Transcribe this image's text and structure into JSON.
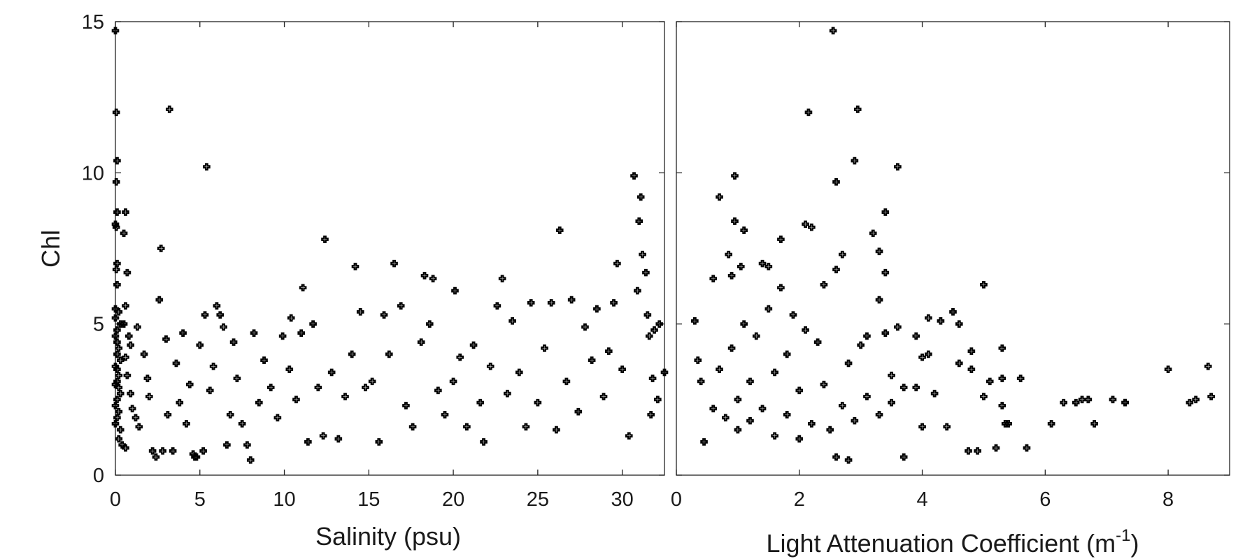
{
  "chart_data": [
    {
      "type": "scatter",
      "ylabel": "Chl",
      "xlabel": "Salinity (psu)",
      "xlim": [
        0,
        32.5
      ],
      "ylim": [
        0,
        15
      ],
      "xticks": [
        "0",
        "5",
        "10",
        "15",
        "20",
        "25",
        "30"
      ],
      "yticks": [
        "0",
        "5",
        "10",
        "15"
      ],
      "grid": false,
      "marker": "cross-outline",
      "points": [
        [
          0.0,
          14.7
        ],
        [
          0.05,
          12.0
        ],
        [
          0.1,
          10.4
        ],
        [
          0.05,
          9.7
        ],
        [
          0.1,
          8.7
        ],
        [
          0.0,
          8.3
        ],
        [
          0.05,
          8.2
        ],
        [
          0.1,
          7.0
        ],
        [
          0.05,
          6.8
        ],
        [
          0.1,
          6.3
        ],
        [
          0.0,
          5.5
        ],
        [
          0.0,
          5.2
        ],
        [
          0.2,
          5.4
        ],
        [
          0.3,
          5.0
        ],
        [
          0.1,
          4.8
        ],
        [
          0.0,
          4.6
        ],
        [
          0.1,
          4.4
        ],
        [
          0.2,
          4.2
        ],
        [
          0.1,
          4.0
        ],
        [
          0.3,
          3.8
        ],
        [
          0.0,
          3.6
        ],
        [
          0.1,
          3.5
        ],
        [
          0.2,
          3.3
        ],
        [
          0.1,
          3.1
        ],
        [
          0.0,
          3.0
        ],
        [
          0.2,
          2.9
        ],
        [
          0.3,
          2.7
        ],
        [
          0.1,
          2.5
        ],
        [
          0.0,
          2.3
        ],
        [
          0.2,
          2.1
        ],
        [
          0.1,
          1.9
        ],
        [
          0.0,
          1.7
        ],
        [
          0.3,
          1.5
        ],
        [
          0.2,
          1.2
        ],
        [
          0.4,
          1.0
        ],
        [
          0.6,
          0.9
        ],
        [
          0.6,
          8.7
        ],
        [
          0.5,
          8.0
        ],
        [
          0.7,
          6.7
        ],
        [
          0.6,
          5.6
        ],
        [
          0.5,
          5.0
        ],
        [
          0.8,
          4.6
        ],
        [
          0.9,
          4.3
        ],
        [
          0.6,
          3.9
        ],
        [
          0.7,
          3.3
        ],
        [
          0.9,
          2.7
        ],
        [
          1.0,
          2.2
        ],
        [
          1.2,
          1.9
        ],
        [
          1.4,
          1.6
        ],
        [
          1.3,
          4.9
        ],
        [
          1.7,
          4.0
        ],
        [
          1.9,
          3.2
        ],
        [
          2.0,
          2.6
        ],
        [
          2.2,
          0.8
        ],
        [
          2.4,
          0.6
        ],
        [
          2.6,
          5.8
        ],
        [
          2.7,
          7.5
        ],
        [
          2.8,
          0.8
        ],
        [
          3.0,
          4.5
        ],
        [
          3.1,
          2.0
        ],
        [
          3.2,
          12.1
        ],
        [
          3.4,
          0.8
        ],
        [
          3.6,
          3.7
        ],
        [
          3.8,
          2.4
        ],
        [
          4.0,
          4.7
        ],
        [
          4.2,
          1.7
        ],
        [
          4.4,
          3.0
        ],
        [
          4.6,
          0.7
        ],
        [
          4.7,
          0.6
        ],
        [
          4.8,
          0.6
        ],
        [
          5.0,
          4.3
        ],
        [
          5.2,
          0.8
        ],
        [
          5.3,
          5.3
        ],
        [
          5.4,
          10.2
        ],
        [
          5.6,
          2.8
        ],
        [
          5.8,
          3.6
        ],
        [
          6.0,
          5.6
        ],
        [
          6.2,
          5.3
        ],
        [
          6.4,
          4.9
        ],
        [
          6.6,
          1.0
        ],
        [
          6.8,
          2.0
        ],
        [
          7.0,
          4.4
        ],
        [
          7.2,
          3.2
        ],
        [
          7.5,
          1.7
        ],
        [
          7.8,
          1.0
        ],
        [
          8.0,
          0.5
        ],
        [
          8.2,
          4.7
        ],
        [
          8.5,
          2.4
        ],
        [
          8.8,
          3.8
        ],
        [
          9.2,
          2.9
        ],
        [
          9.6,
          1.9
        ],
        [
          9.9,
          4.6
        ],
        [
          10.3,
          3.5
        ],
        [
          10.4,
          5.2
        ],
        [
          10.7,
          2.5
        ],
        [
          11.0,
          4.7
        ],
        [
          11.1,
          6.2
        ],
        [
          11.4,
          1.1
        ],
        [
          11.7,
          5.0
        ],
        [
          12.0,
          2.9
        ],
        [
          12.3,
          1.3
        ],
        [
          12.4,
          7.8
        ],
        [
          12.8,
          3.4
        ],
        [
          13.2,
          1.2
        ],
        [
          13.6,
          2.6
        ],
        [
          14.0,
          4.0
        ],
        [
          14.2,
          6.9
        ],
        [
          14.5,
          5.4
        ],
        [
          14.8,
          2.9
        ],
        [
          15.2,
          3.1
        ],
        [
          15.6,
          1.1
        ],
        [
          15.9,
          5.3
        ],
        [
          16.2,
          4.0
        ],
        [
          16.5,
          7.0
        ],
        [
          16.9,
          5.6
        ],
        [
          17.2,
          2.3
        ],
        [
          17.6,
          1.6
        ],
        [
          18.1,
          4.4
        ],
        [
          18.3,
          6.6
        ],
        [
          18.6,
          5.0
        ],
        [
          18.8,
          6.5
        ],
        [
          19.1,
          2.8
        ],
        [
          19.5,
          2.0
        ],
        [
          20.0,
          3.1
        ],
        [
          20.1,
          6.1
        ],
        [
          20.4,
          3.9
        ],
        [
          20.8,
          1.6
        ],
        [
          21.2,
          4.3
        ],
        [
          21.6,
          2.4
        ],
        [
          21.8,
          1.1
        ],
        [
          22.2,
          3.6
        ],
        [
          22.6,
          5.6
        ],
        [
          22.9,
          6.5
        ],
        [
          23.2,
          2.7
        ],
        [
          23.5,
          5.1
        ],
        [
          23.9,
          3.4
        ],
        [
          24.3,
          1.6
        ],
        [
          24.6,
          5.7
        ],
        [
          25.0,
          2.4
        ],
        [
          25.4,
          4.2
        ],
        [
          25.8,
          5.7
        ],
        [
          26.1,
          1.5
        ],
        [
          26.3,
          8.1
        ],
        [
          26.7,
          3.1
        ],
        [
          27.0,
          5.8
        ],
        [
          27.4,
          2.1
        ],
        [
          27.8,
          4.9
        ],
        [
          28.2,
          3.8
        ],
        [
          28.5,
          5.5
        ],
        [
          28.9,
          2.6
        ],
        [
          29.2,
          4.1
        ],
        [
          29.5,
          5.7
        ],
        [
          29.7,
          7.0
        ],
        [
          30.0,
          3.5
        ],
        [
          30.4,
          1.3
        ],
        [
          30.7,
          9.9
        ],
        [
          30.9,
          6.1
        ],
        [
          31.0,
          8.4
        ],
        [
          31.1,
          9.2
        ],
        [
          31.2,
          7.3
        ],
        [
          31.4,
          6.7
        ],
        [
          31.5,
          5.3
        ],
        [
          31.6,
          4.6
        ],
        [
          31.7,
          2.0
        ],
        [
          31.8,
          3.2
        ],
        [
          31.9,
          4.8
        ],
        [
          32.1,
          2.5
        ],
        [
          32.2,
          5.0
        ],
        [
          32.5,
          3.4
        ]
      ]
    },
    {
      "type": "scatter",
      "xlabel_text": "Light Attenuation Coefficient (m",
      "xlabel_sup": "-1",
      "xlabel_tail": ")",
      "xlim": [
        0,
        9
      ],
      "ylim": [
        0,
        15
      ],
      "xticks": [
        "0",
        "2",
        "4",
        "6",
        "8"
      ],
      "grid": false,
      "marker": "cross-outline",
      "points": [
        [
          2.55,
          14.7
        ],
        [
          2.15,
          12.0
        ],
        [
          2.95,
          12.1
        ],
        [
          2.9,
          10.4
        ],
        [
          3.6,
          10.2
        ],
        [
          0.95,
          9.9
        ],
        [
          2.6,
          9.7
        ],
        [
          0.7,
          9.2
        ],
        [
          3.4,
          8.7
        ],
        [
          0.95,
          8.4
        ],
        [
          1.1,
          8.1
        ],
        [
          2.1,
          8.3
        ],
        [
          2.2,
          8.2
        ],
        [
          3.2,
          8.0
        ],
        [
          1.7,
          7.8
        ],
        [
          3.3,
          7.4
        ],
        [
          0.85,
          7.3
        ],
        [
          2.7,
          7.3
        ],
        [
          1.4,
          7.0
        ],
        [
          1.5,
          6.9
        ],
        [
          3.4,
          6.7
        ],
        [
          1.05,
          6.9
        ],
        [
          2.6,
          6.8
        ],
        [
          0.9,
          6.6
        ],
        [
          0.6,
          6.5
        ],
        [
          2.4,
          6.3
        ],
        [
          1.7,
          6.2
        ],
        [
          3.3,
          5.8
        ],
        [
          5.0,
          6.3
        ],
        [
          4.5,
          5.4
        ],
        [
          4.1,
          5.2
        ],
        [
          4.3,
          5.1
        ],
        [
          4.6,
          5.0
        ],
        [
          3.6,
          4.9
        ],
        [
          3.9,
          4.6
        ],
        [
          4.1,
          4.0
        ],
        [
          4.0,
          3.9
        ],
        [
          4.6,
          3.7
        ],
        [
          4.8,
          4.1
        ],
        [
          4.8,
          3.5
        ],
        [
          5.1,
          3.1
        ],
        [
          5.3,
          3.2
        ],
        [
          5.3,
          4.2
        ],
        [
          5.6,
          3.2
        ],
        [
          5.0,
          2.6
        ],
        [
          5.3,
          2.3
        ],
        [
          5.4,
          1.7
        ],
        [
          5.35,
          1.7
        ],
        [
          5.7,
          0.9
        ],
        [
          5.2,
          0.9
        ],
        [
          4.9,
          0.8
        ],
        [
          4.75,
          0.8
        ],
        [
          4.4,
          1.6
        ],
        [
          4.2,
          2.7
        ],
        [
          4.0,
          1.6
        ],
        [
          3.7,
          0.6
        ],
        [
          2.8,
          0.5
        ],
        [
          2.6,
          0.6
        ],
        [
          0.45,
          1.1
        ],
        [
          0.3,
          5.1
        ],
        [
          0.35,
          3.8
        ],
        [
          0.4,
          3.1
        ],
        [
          6.1,
          1.7
        ],
        [
          6.3,
          2.4
        ],
        [
          6.5,
          2.4
        ],
        [
          6.6,
          2.5
        ],
        [
          6.7,
          2.5
        ],
        [
          6.8,
          1.7
        ],
        [
          7.1,
          2.5
        ],
        [
          7.3,
          2.4
        ],
        [
          7.3,
          2.4
        ],
        [
          8.0,
          3.5
        ],
        [
          8.35,
          2.4
        ],
        [
          8.45,
          2.5
        ],
        [
          8.65,
          3.6
        ],
        [
          8.7,
          2.6
        ],
        [
          3.4,
          4.7
        ],
        [
          3.1,
          4.6
        ],
        [
          3.0,
          4.3
        ],
        [
          2.8,
          3.7
        ],
        [
          3.5,
          3.3
        ],
        [
          3.7,
          2.9
        ],
        [
          3.9,
          2.9
        ],
        [
          0.8,
          1.9
        ],
        [
          1.0,
          2.5
        ],
        [
          1.2,
          3.1
        ],
        [
          1.4,
          2.2
        ],
        [
          1.6,
          3.4
        ],
        [
          1.8,
          2.0
        ],
        [
          2.0,
          2.8
        ],
        [
          2.2,
          1.7
        ],
        [
          2.4,
          3.0
        ],
        [
          0.9,
          4.2
        ],
        [
          1.1,
          5.0
        ],
        [
          1.3,
          4.6
        ],
        [
          1.5,
          5.5
        ],
        [
          1.9,
          5.3
        ],
        [
          2.1,
          4.8
        ],
        [
          2.3,
          4.4
        ],
        [
          0.7,
          3.5
        ],
        [
          0.6,
          2.2
        ],
        [
          1.0,
          1.5
        ],
        [
          1.6,
          1.3
        ],
        [
          2.0,
          1.2
        ],
        [
          2.5,
          1.5
        ],
        [
          2.7,
          2.3
        ],
        [
          2.9,
          1.8
        ],
        [
          3.1,
          2.6
        ],
        [
          3.3,
          2.0
        ],
        [
          3.5,
          2.4
        ],
        [
          1.2,
          1.8
        ],
        [
          1.8,
          4.0
        ]
      ]
    }
  ]
}
